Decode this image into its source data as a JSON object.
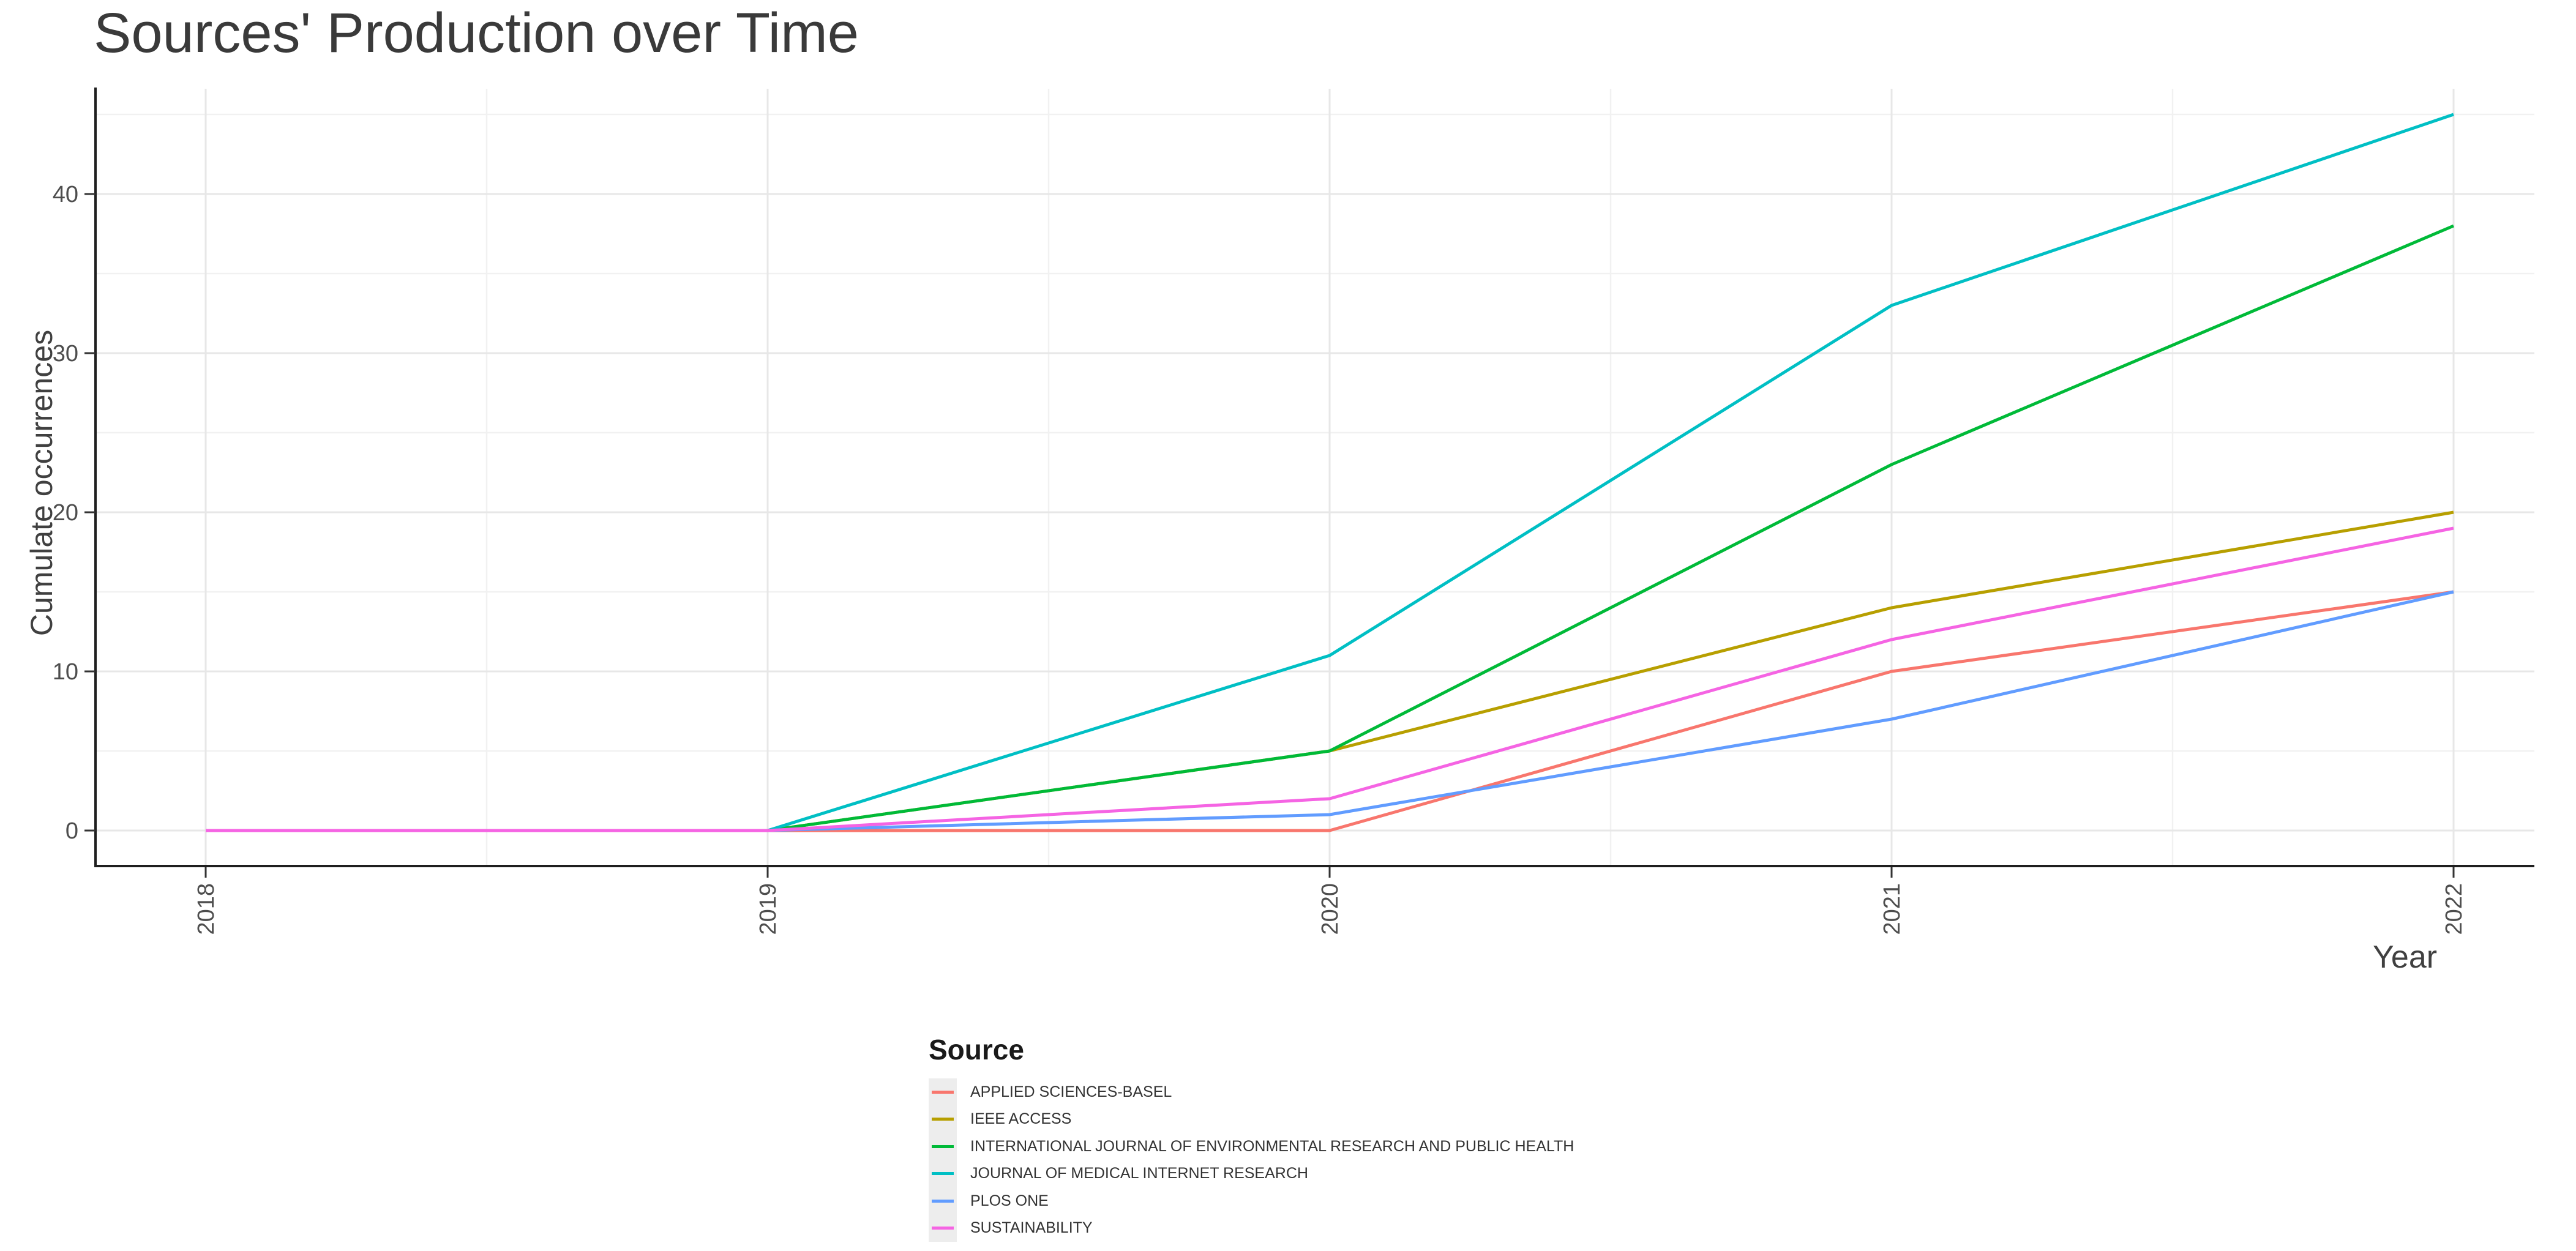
{
  "chart_data": {
    "type": "line",
    "title": "Sources' Production over Time",
    "xlabel": "Year",
    "ylabel": "Cumulate occurrences",
    "x": [
      2018,
      2019,
      2020,
      2021,
      2022
    ],
    "x_tick_labels": [
      "2018",
      "2019",
      "2020",
      "2021",
      "2022"
    ],
    "y_major_ticks": [
      0,
      10,
      20,
      30,
      40
    ],
    "y_minor_gridlines": [
      5,
      15,
      25,
      35,
      45
    ],
    "x_minor_gridlines": [
      2018.5,
      2019.5,
      2020.5,
      2021.5
    ],
    "xlim": [
      2017.8,
      2022.15
    ],
    "ylim": [
      -2.2,
      46.6
    ],
    "grid": "major and minor gridlines, light gray on white panel",
    "legend_position": "bottom-left",
    "legend_title": "Source",
    "series": [
      {
        "name": "APPLIED SCIENCES-BASEL",
        "color": "#F8766D",
        "values": [
          0,
          0,
          0,
          10,
          15
        ]
      },
      {
        "name": "IEEE ACCESS",
        "color": "#B79F00",
        "values": [
          0,
          0,
          5,
          14,
          20
        ]
      },
      {
        "name": "INTERNATIONAL JOURNAL OF ENVIRONMENTAL RESEARCH AND PUBLIC HEALTH",
        "color": "#00BA38",
        "values": [
          0,
          0,
          5,
          23,
          38
        ]
      },
      {
        "name": "JOURNAL OF MEDICAL INTERNET RESEARCH",
        "color": "#00BFC4",
        "values": [
          0,
          0,
          11,
          33,
          45
        ]
      },
      {
        "name": "PLOS ONE",
        "color": "#619CFF",
        "values": [
          0,
          0,
          1,
          7,
          15
        ]
      },
      {
        "name": "SUSTAINABILITY",
        "color": "#F564E3",
        "values": [
          0,
          0,
          2,
          12,
          19
        ]
      }
    ]
  },
  "colors": {
    "background": "#FFFFFF",
    "grid_major": "#E7E7E7",
    "grid_minor": "#F1F1F1",
    "axis_line": "#1F1F1F",
    "tick_mark": "#333333",
    "tick_text": "#4D4D4D",
    "axis_title_text": "#404040",
    "plot_title_text": "#3A3A3A",
    "legend_key_bg": "#EDEDED",
    "legend_text": "#333333",
    "legend_title_text": "#1A1A1A"
  }
}
